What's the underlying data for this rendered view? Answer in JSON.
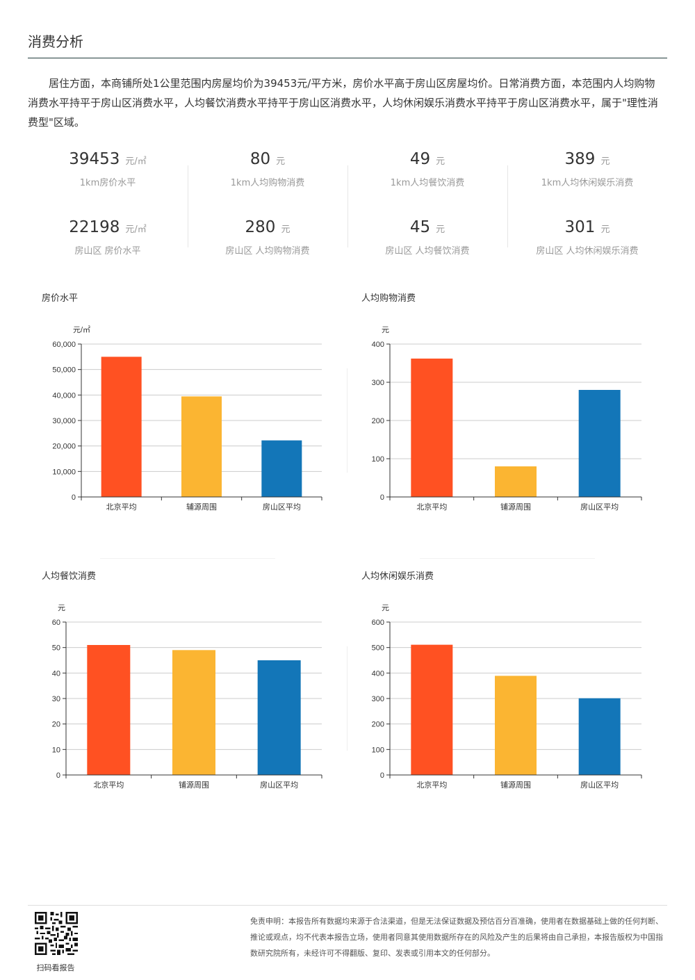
{
  "page": {
    "section_title": "消费分析",
    "intro": "居住方面，本商铺所处1公里范围内房屋均价为39453元/平方米，房价水平高于房山区房屋均价。日常消费方面，本范围内人均购物消费水平持平于房山区消费水平，人均餐饮消费水平持平于房山区消费水平，人均休闲娱乐消费水平持平于房山区消费水平，属于\"理性消费型\"区域。"
  },
  "stats": [
    {
      "a": {
        "value": "39453",
        "unit": "元/㎡",
        "label": "1km房价水平"
      },
      "b": {
        "value": "22198",
        "unit": "元/㎡",
        "label": "房山区 房价水平"
      }
    },
    {
      "a": {
        "value": "80",
        "unit": "元",
        "label": "1km人均购物消费"
      },
      "b": {
        "value": "280",
        "unit": "元",
        "label": "房山区 人均购物消费"
      }
    },
    {
      "a": {
        "value": "49",
        "unit": "元",
        "label": "1km人均餐饮消费"
      },
      "b": {
        "value": "45",
        "unit": "元",
        "label": "房山区 人均餐饮消费"
      }
    },
    {
      "a": {
        "value": "389",
        "unit": "元",
        "label": "1km人均休闲娱乐消费"
      },
      "b": {
        "value": "301",
        "unit": "元",
        "label": "房山区 人均休闲娱乐消费"
      }
    }
  ],
  "colors": {
    "bar1": "#ff5122",
    "bar2": "#fbb532",
    "bar3": "#1376b8"
  },
  "chart_data": [
    {
      "type": "bar",
      "title": "房价水平",
      "ylabel": "元/㎡",
      "categories": [
        "北京平均",
        "辅源周围",
        "房山区平均"
      ],
      "values": [
        55000,
        39453,
        22198
      ],
      "ylim": [
        0,
        60000
      ],
      "yticks": [
        "0",
        "10,000",
        "20,000",
        "30,000",
        "40,000",
        "50,000",
        "60,000"
      ],
      "grid": true
    },
    {
      "type": "bar",
      "title": "人均购物消费",
      "ylabel": "元",
      "categories": [
        "北京平均",
        "铺源周围",
        "房山区平均"
      ],
      "values": [
        362,
        80,
        280
      ],
      "ylim": [
        0,
        400
      ],
      "yticks": [
        "0",
        "100",
        "200",
        "300",
        "400"
      ],
      "grid": true
    },
    {
      "type": "bar",
      "title": "人均餐饮消费",
      "ylabel": "元",
      "categories": [
        "北京平均",
        "铺源周围",
        "房山区平均"
      ],
      "values": [
        51,
        49,
        45
      ],
      "ylim": [
        0,
        60
      ],
      "yticks": [
        "0",
        "10",
        "20",
        "30",
        "40",
        "50",
        "60"
      ],
      "grid": true
    },
    {
      "type": "bar",
      "title": "人均休闲娱乐消费",
      "ylabel": "元",
      "categories": [
        "北京平均",
        "铺源周围",
        "房山区平均"
      ],
      "values": [
        511,
        389,
        301
      ],
      "ylim": [
        0,
        600
      ],
      "yticks": [
        "0",
        "100",
        "200",
        "300",
        "400",
        "500",
        "600"
      ],
      "grid": true
    }
  ],
  "footer": {
    "qr_caption": "扫码看报告",
    "disclaimer": "免责申明：本报告所有数据均来源于合法渠道，但是无法保证数据及预估百分百准确，使用者在数据基础上做的任何判断、推论或观点，均不代表本报告立场，使用者同意其使用数据所存在的风险及产生的后果将由自己承担，本报告版权为中国指数研究院所有，未经许可不得翻版、复印、发表或引用本文的任何部分。"
  }
}
